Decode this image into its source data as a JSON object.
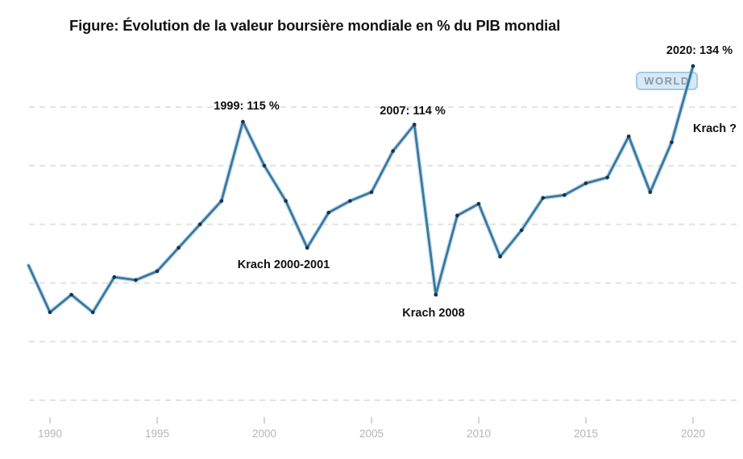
{
  "chart_data": {
    "type": "line",
    "title": "Figure: Évolution de la valeur boursière mondiale en % du PIB mondial",
    "xlabel": "",
    "ylabel": "",
    "x_ticks": [
      1990,
      1995,
      2000,
      2005,
      2010,
      2015,
      2020
    ],
    "y_gridlines": [
      20,
      40,
      60,
      80,
      100,
      120
    ],
    "ylim": [
      14,
      140
    ],
    "xlim": [
      1989,
      2021
    ],
    "grid": "horizontal-dashed",
    "legend_position": "badge-on-line",
    "series": [
      {
        "name": "WORLD",
        "x": [
          1989,
          1990,
          1991,
          1992,
          1993,
          1994,
          1995,
          1996,
          1997,
          1998,
          1999,
          2000,
          2001,
          2002,
          2003,
          2004,
          2005,
          2006,
          2007,
          2008,
          2009,
          2010,
          2011,
          2012,
          2013,
          2014,
          2015,
          2016,
          2017,
          2018,
          2019,
          2020
        ],
        "values": [
          66,
          50,
          56,
          50,
          62,
          61,
          64,
          72,
          80,
          88,
          115,
          100,
          88,
          72,
          84,
          88,
          91,
          105,
          114,
          56,
          83,
          87,
          69,
          78,
          89,
          90,
          94,
          96,
          110,
          91,
          108,
          134
        ]
      }
    ],
    "annotations": [
      {
        "id": "peak_1999",
        "text": "1999: 115 %"
      },
      {
        "id": "krach_2000_2001",
        "text": "Krach 2000-2001"
      },
      {
        "id": "peak_2007",
        "text": "2007: 114 %"
      },
      {
        "id": "krach_2008",
        "text": "Krach 2008"
      },
      {
        "id": "peak_2020",
        "text": "2020: 134 %"
      },
      {
        "id": "krach_next",
        "text": "Krach ?"
      },
      {
        "id": "series_badge",
        "text": "WORLD"
      }
    ],
    "colors": {
      "line": "#39779f",
      "line_halo": "#a5cbe3",
      "point": "#1d3140",
      "grid": "#e2e2e2",
      "axis_label": "#b5b5b5",
      "tick": "#c8c8c8",
      "annotation": "#111111",
      "badge_bg": "#d7e9f7",
      "badge_border": "#a6c9e2",
      "badge_text": "#8a98a3",
      "title": "#141414"
    }
  }
}
